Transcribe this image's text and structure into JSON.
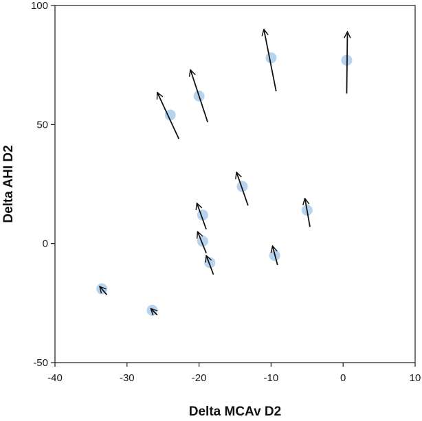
{
  "chart_data": {
    "type": "scatter",
    "title": "",
    "xlabel": "Delta MCAv D2",
    "ylabel": "Delta AHI D2",
    "xlim": [
      -40,
      10
    ],
    "ylim": [
      -50,
      100
    ],
    "x_ticks": [
      -40,
      -30,
      -20,
      -10,
      0,
      10
    ],
    "y_ticks": [
      -50,
      0,
      50,
      100
    ],
    "grid": false,
    "legend": "none",
    "point_color": "#b7d4ef",
    "arrow_color": "#111111",
    "points": [
      {
        "x": 0.5,
        "y": 77,
        "arrow_from": [
          0.5,
          63
        ],
        "arrow_to": [
          0.6,
          89
        ]
      },
      {
        "x": -10,
        "y": 78,
        "arrow_from": [
          -9.3,
          64
        ],
        "arrow_to": [
          -11,
          90
        ]
      },
      {
        "x": -20,
        "y": 62,
        "arrow_from": [
          -18.8,
          51
        ],
        "arrow_to": [
          -21.2,
          73
        ]
      },
      {
        "x": -24,
        "y": 54,
        "arrow_from": [
          -22.8,
          44
        ],
        "arrow_to": [
          -25.8,
          63.5
        ]
      },
      {
        "x": -14,
        "y": 24,
        "arrow_from": [
          -13.2,
          16
        ],
        "arrow_to": [
          -14.8,
          30
        ]
      },
      {
        "x": -5,
        "y": 14,
        "arrow_from": [
          -4.6,
          7
        ],
        "arrow_to": [
          -5.3,
          19
        ]
      },
      {
        "x": -19.5,
        "y": 12,
        "arrow_from": [
          -19,
          6
        ],
        "arrow_to": [
          -20.3,
          17
        ]
      },
      {
        "x": -19.5,
        "y": 1,
        "arrow_from": [
          -19,
          -4
        ],
        "arrow_to": [
          -20.2,
          5
        ]
      },
      {
        "x": -18.5,
        "y": -8,
        "arrow_from": [
          -18,
          -13
        ],
        "arrow_to": [
          -19,
          -5
        ]
      },
      {
        "x": -9.5,
        "y": -5,
        "arrow_from": [
          -9.1,
          -9
        ],
        "arrow_to": [
          -9.8,
          -1
        ]
      },
      {
        "x": -33.5,
        "y": -19,
        "arrow_from": [
          -32.8,
          -21.5
        ],
        "arrow_to": [
          -33.8,
          -18
        ]
      },
      {
        "x": -26.5,
        "y": -28,
        "arrow_from": [
          -25.8,
          -30
        ],
        "arrow_to": [
          -26.7,
          -27.3
        ]
      }
    ]
  }
}
